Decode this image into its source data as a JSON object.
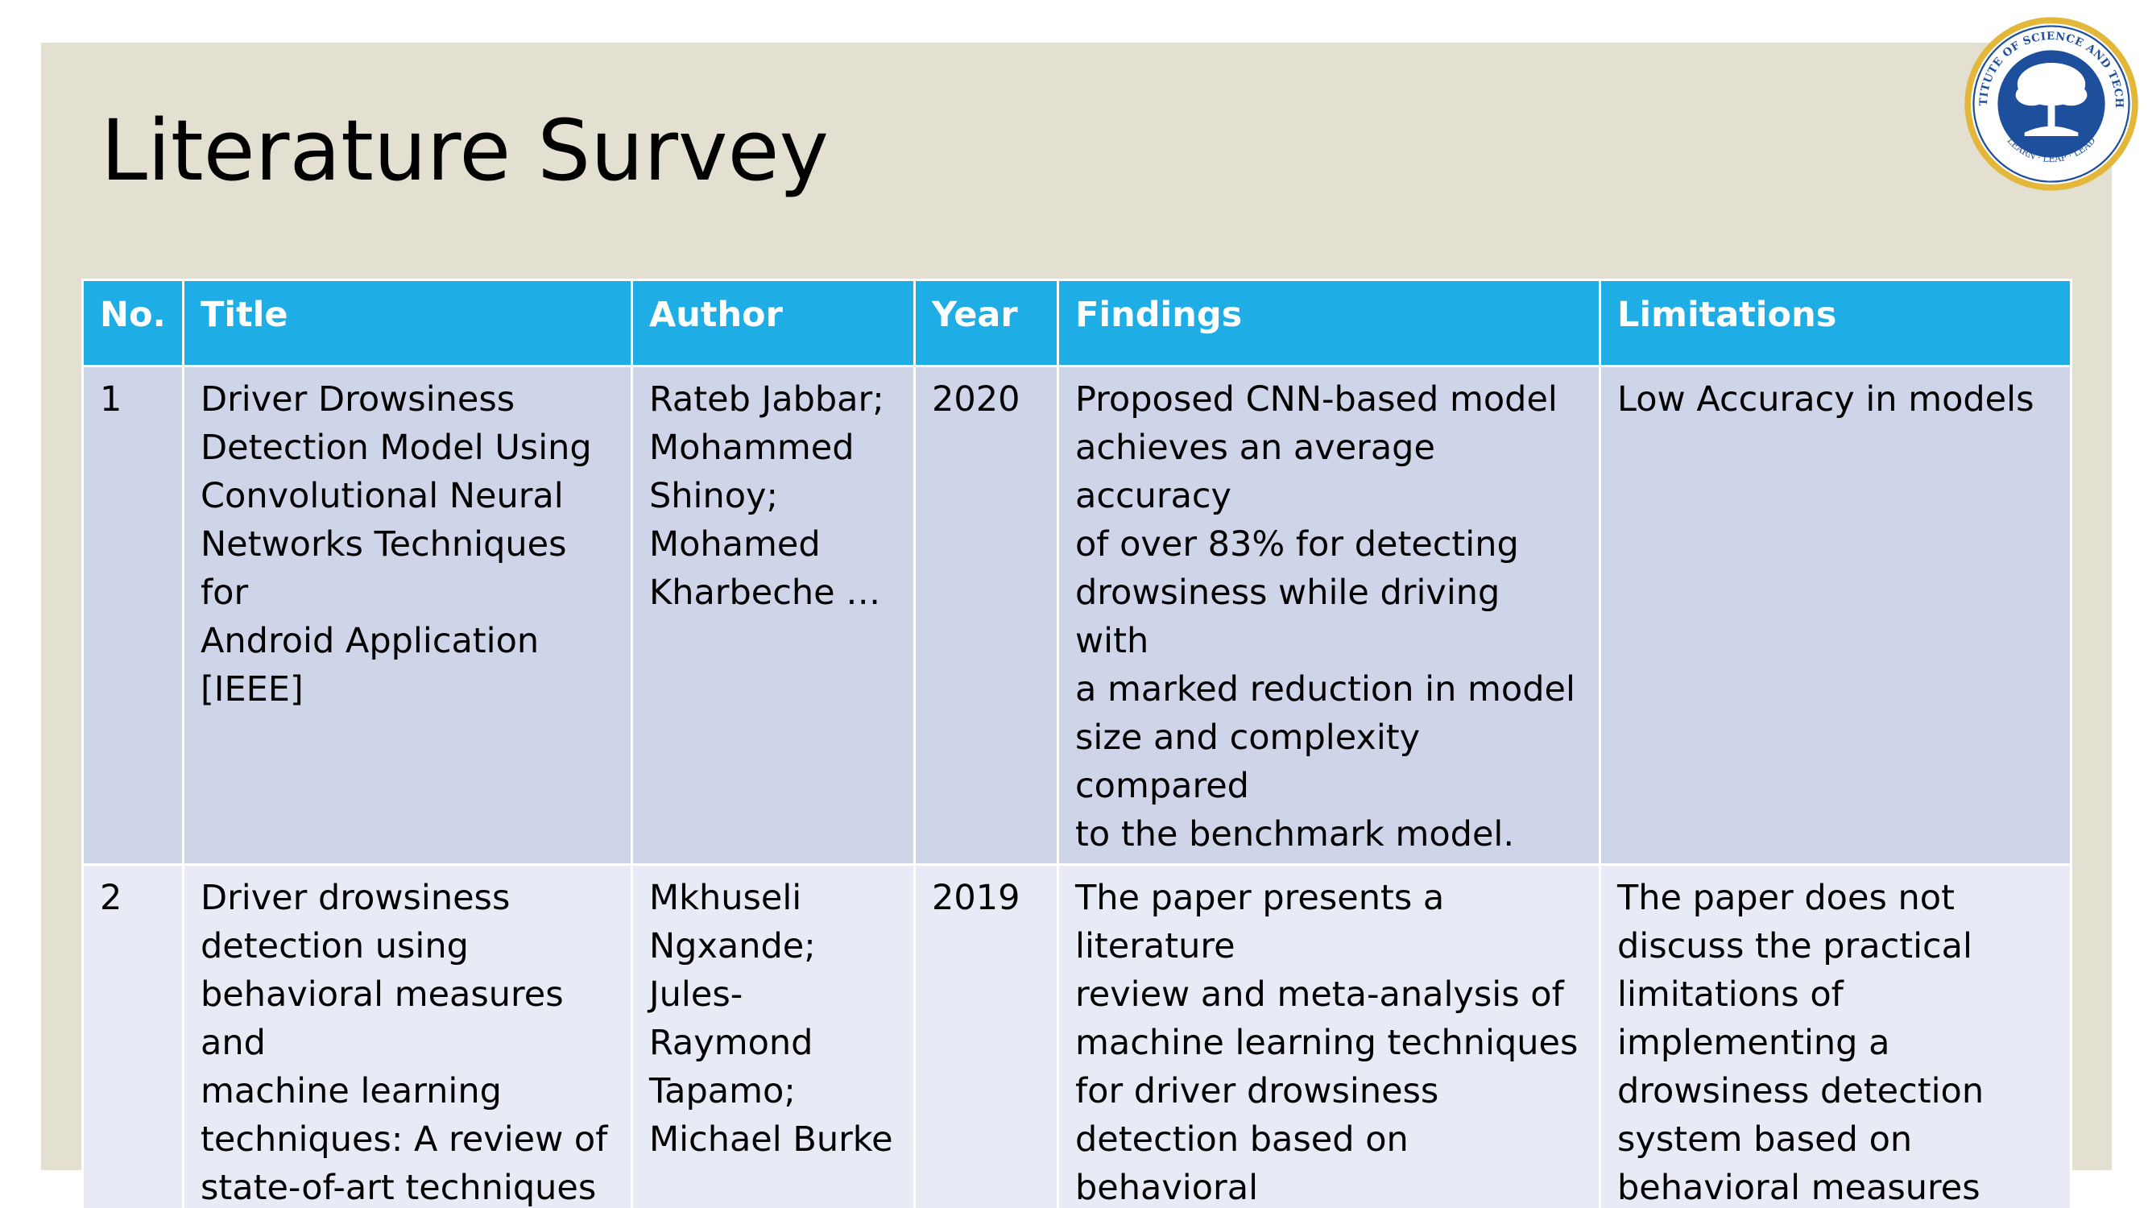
{
  "slide": {
    "title": "Literature Survey",
    "colors": {
      "panel": "#e3e0d2",
      "header": "#1eade4",
      "row_dark": "#cfd5e9",
      "row_light": "#e8ebf5",
      "logo_blue": "#1d4f9c",
      "logo_gold": "#e3b83a"
    }
  },
  "logo": {
    "icon": "institute-seal-icon",
    "text_top": "SRM INSTITUTE OF SCIENCE AND TECHNOLOGY",
    "text_bottom": "LEARN · LEAP · LEAD"
  },
  "table": {
    "headers": [
      "No.",
      "Title",
      "Author",
      "Year",
      "Findings",
      "Limitations"
    ],
    "rows": [
      {
        "no": "1",
        "title": "Driver Drowsiness\nDetection Model Using\nConvolutional Neural\nNetworks Techniques for\nAndroid Application\n[IEEE]",
        "author": "Rateb Jabbar;\nMohammed\nShinoy;\nMohamed\nKharbeche …",
        "year": "2020",
        "findings": "Proposed CNN-based model\nachieves an average accuracy\nof over 83% for detecting\ndrowsiness while driving with\na marked reduction in model\nsize and complexity compared\nto the benchmark model.",
        "limitations": "Low Accuracy in models"
      },
      {
        "no": "2",
        "title": "Driver drowsiness\ndetection using\nbehavioral measures and\nmachine learning\ntechniques: A review of\nstate-of-art techniques\n[IEEE]",
        "author": "Mkhuseli\nNgxande;\nJules-Raymond\nTapamo;\nMichael Burke",
        "year": "2019",
        "findings": "The paper presents a literature\nreview and meta-analysis of\nmachine learning techniques\nfor driver drowsiness\ndetection based on behavioral\nmeasures",
        "limitations": "The paper does not\ndiscuss the practical\nlimitations of\nimplementing a\ndrowsiness detection\nsystem based on\nbehavioral measures"
      }
    ]
  }
}
